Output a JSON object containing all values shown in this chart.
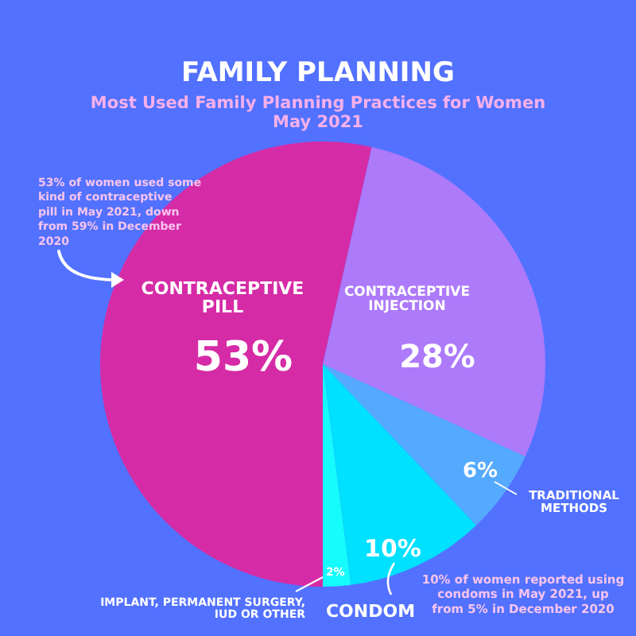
{
  "chart_data": {
    "type": "pie",
    "title": "FAMILY PLANNING",
    "subtitle": "Most Used Family Planning Practices for Women May 2021",
    "categories": [
      "CONTRACEPTIVE PILL",
      "CONTRACEPTIVE INJECTION",
      "TRADITIONAL METHODS",
      "CONDOM",
      "IMPLANT, PERMANENT SURGERY, IUD OR OTHER"
    ],
    "values": [
      53,
      28,
      6,
      10,
      2
    ],
    "colors": [
      "#d62ba6",
      "#ad7afa",
      "#55aaff",
      "#00e0ff",
      "#14fcfc"
    ],
    "value_labels": [
      "53%",
      "28%",
      "6%",
      "10%",
      "2%"
    ],
    "annotations": [
      "53% of women used some kind of contraceptive pill in May 2021, down from 59% in December 2020",
      "10% of women reported using condoms in May 2021, up from 5% in December 2020"
    ]
  }
}
